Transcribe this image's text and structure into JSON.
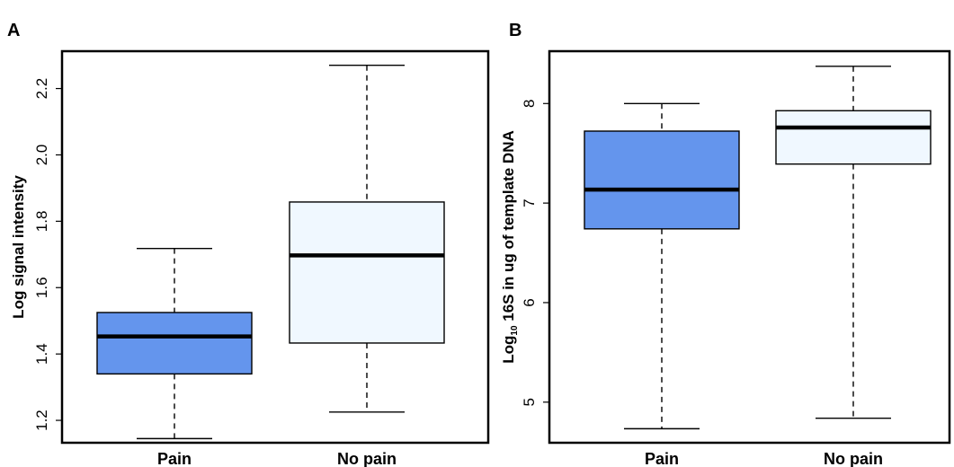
{
  "chart_data": [
    {
      "type": "box",
      "panel": "A",
      "xlabel": "",
      "ylabel": "Log signal intensity",
      "ylabel_sub": "",
      "ylabel_rest": "",
      "ylim": [
        1.1325,
        2.3125
      ],
      "yticks": [
        1.2,
        1.4,
        1.6,
        1.8,
        2.0,
        2.2
      ],
      "categories": [
        "Pain",
        "No pain"
      ],
      "colors": [
        "#6495ed",
        "#f0f8ff"
      ],
      "boxes": [
        {
          "category": "Pain",
          "min": 1.145,
          "q1": 1.34,
          "median": 1.453,
          "q3": 1.525,
          "max": 1.718
        },
        {
          "category": "No pain",
          "min": 1.225,
          "q1": 1.433,
          "median": 1.697,
          "q3": 1.858,
          "max": 2.27
        }
      ]
    },
    {
      "type": "box",
      "panel": "B",
      "xlabel": "",
      "ylabel": "Log",
      "ylabel_sub": "10",
      "ylabel_rest": " 16S in ug of template DNA",
      "ylim": [
        4.592,
        8.526
      ],
      "yticks": [
        5,
        6,
        7,
        8
      ],
      "categories": [
        "Pain",
        "No pain"
      ],
      "colors": [
        "#6495ed",
        "#f0f8ff"
      ],
      "boxes": [
        {
          "category": "Pain",
          "min": 4.733,
          "q1": 6.741,
          "median": 7.135,
          "q3": 7.723,
          "max": 8.0
        },
        {
          "category": "No pain",
          "min": 4.838,
          "q1": 7.392,
          "median": 7.759,
          "q3": 7.928,
          "max": 8.374
        }
      ]
    }
  ]
}
